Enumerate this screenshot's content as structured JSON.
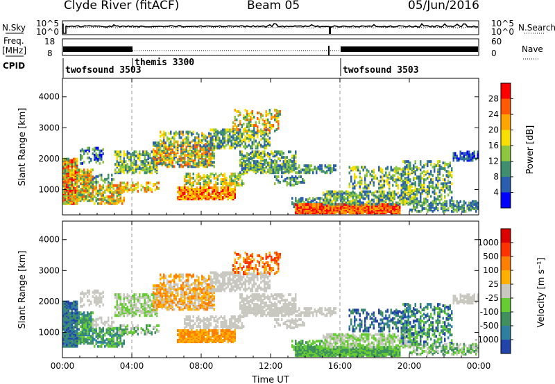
{
  "header": {
    "station": "Clyde River (fitACF)",
    "beam": "Beam 05",
    "date": "05/Jun/2016"
  },
  "top_panels": {
    "nsky_label": "N.Sky",
    "nsearch_label": "N.Search",
    "noise_ticks": [
      "10^5",
      "10^0"
    ],
    "freq_label": "Freq.",
    "freq_unit": "[MHz]",
    "freq_ticks": [
      "18",
      "8"
    ],
    "nave_label": "Nave",
    "nave_ticks": [
      "60",
      "0"
    ],
    "cpid_label": "CPID"
  },
  "chart_data": [
    {
      "type": "heatmap",
      "name": "power",
      "xlabel": "",
      "ylabel": "Slant Range [km]",
      "colorbar_label": "Power [dB]",
      "x_ticks": [
        "00:00",
        "04:00",
        "08:00",
        "12:00",
        "16:00",
        "20:00",
        "00:00"
      ],
      "y_ticks": [
        1000,
        2000,
        3000,
        4000
      ],
      "xlim_hours": [
        0,
        24
      ],
      "ylim_km": [
        180,
        4600
      ],
      "colorbar_ticks": [
        "4",
        "8",
        "12",
        "16",
        "20",
        "24",
        "28"
      ],
      "colorbar_range": [
        0,
        31
      ],
      "colors": [
        "#0000ff",
        "#2a5fb0",
        "#3d8f6e",
        "#8dc63f",
        "#f7e000",
        "#ffa500",
        "#ff5a00",
        "#ff0000"
      ]
    },
    {
      "type": "heatmap",
      "name": "velocity",
      "xlabel": "Time UT",
      "ylabel": "Slant Range [km]",
      "colorbar_label": "Velocity [m s⁻¹]",
      "x_ticks": [
        "00:00",
        "04:00",
        "08:00",
        "12:00",
        "16:00",
        "20:00",
        "00:00"
      ],
      "y_ticks": [
        1000,
        2000,
        3000,
        4000
      ],
      "xlim_hours": [
        0,
        24
      ],
      "ylim_km": [
        180,
        4600
      ],
      "colorbar_ticks": [
        "1000",
        "500",
        "100",
        "25",
        "-25",
        "-100",
        "-500",
        "-1000"
      ],
      "colors": [
        "#2244aa",
        "#2f7f9f",
        "#3f8f5f",
        "#66cc33",
        "#c8c8c0",
        "#ffb000",
        "#ff7f00",
        "#ff3300",
        "#dd0000"
      ]
    }
  ],
  "cpid_segments": [
    {
      "label": "twofsound 3503",
      "start_hour": 0.0
    },
    {
      "label": "themis 3300",
      "start_hour": 4.0
    },
    {
      "label": "twofsound 3503",
      "start_hour": 16.0
    }
  ]
}
